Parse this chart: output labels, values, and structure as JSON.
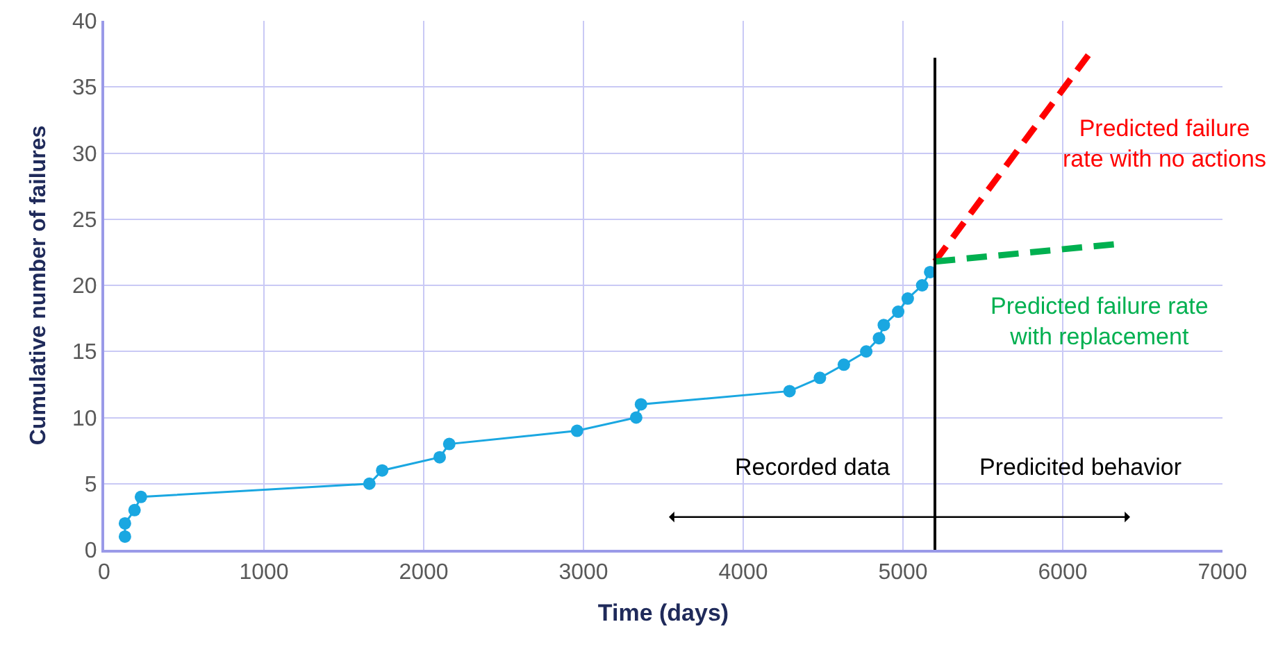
{
  "chart_data": {
    "type": "line",
    "xlabel": "Time (days)",
    "ylabel": "Cumulative number of failures",
    "xlim": [
      0,
      7000
    ],
    "xticks": [
      0,
      1000,
      2000,
      3000,
      4000,
      5000,
      6000,
      7000
    ],
    "ylim": [
      0,
      40
    ],
    "yticks": [
      0,
      5,
      10,
      15,
      20,
      25,
      30,
      35,
      40
    ],
    "grid": true,
    "series": [
      {
        "color": "#1aa7e1",
        "marker": "circle",
        "line_style": "solid",
        "x": [
          130,
          130,
          190,
          230,
          1660,
          1740,
          2100,
          2160,
          2960,
          3330,
          3360,
          4290,
          4480,
          4630,
          4770,
          4850,
          4880,
          4970,
          5030,
          5120,
          5170
        ],
        "values": [
          1,
          2,
          3,
          4,
          5,
          6,
          7,
          8,
          9,
          10,
          11,
          12,
          13,
          14,
          15,
          16,
          17,
          18,
          19,
          20,
          21
        ]
      },
      {
        "name": "Predicted failure\nrate with no actions",
        "color": "#ff0000",
        "marker": "none",
        "line_style": "dashed",
        "x": [
          5200,
          6160
        ],
        "values": [
          21.8,
          37.4
        ]
      },
      {
        "name": "Predicted failure rate\nwith replacement",
        "color": "#00b050",
        "marker": "none",
        "line_style": "dashed",
        "x": [
          5200,
          6320
        ],
        "values": [
          21.8,
          23.1
        ]
      }
    ],
    "ref_lines": [
      {
        "axis": "x",
        "value": 5200,
        "color": "#000000",
        "line_style": "solid"
      }
    ],
    "annotations": [
      "Recorded data",
      "Predicited behavior"
    ]
  }
}
